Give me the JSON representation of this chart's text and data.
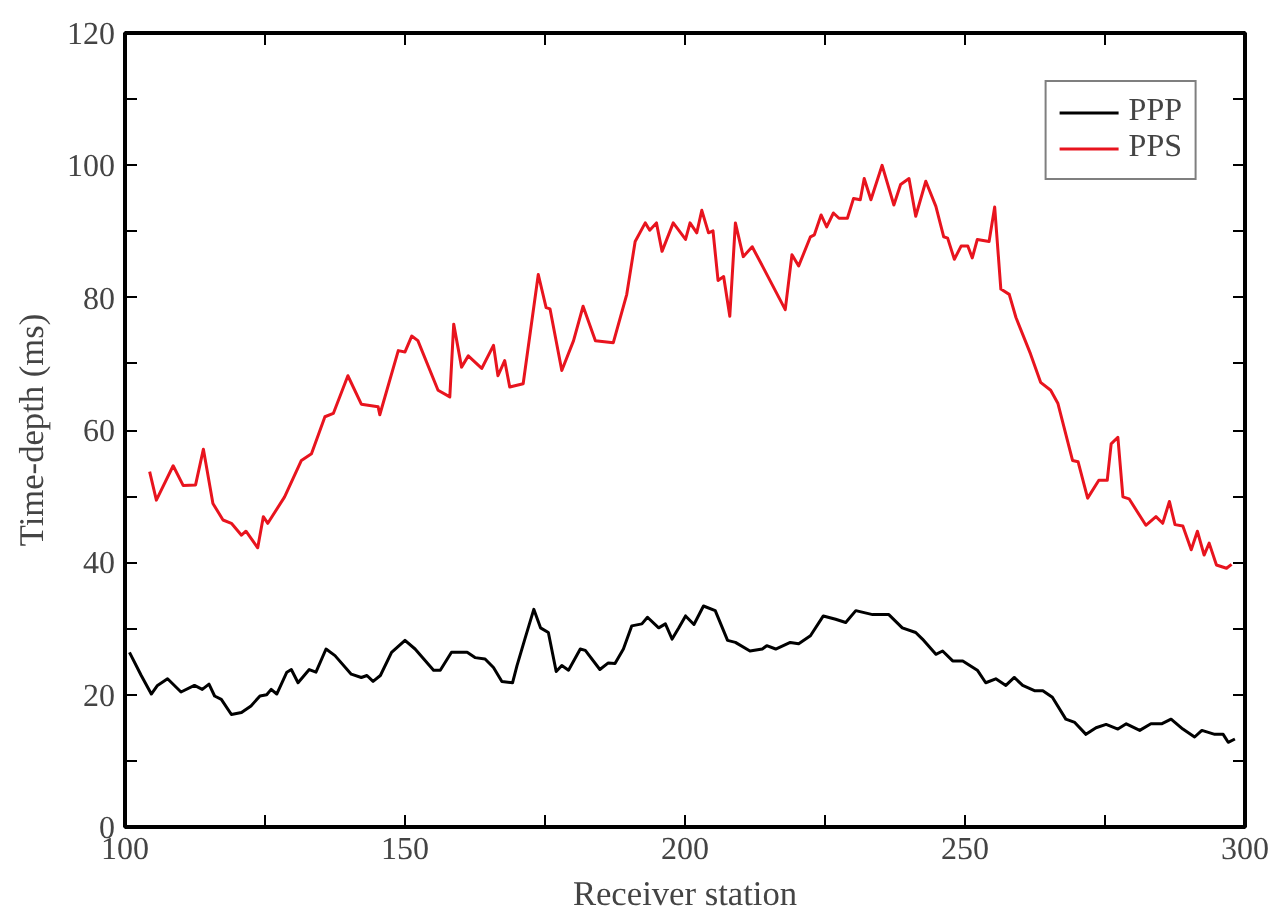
{
  "chart_data": {
    "type": "line",
    "xlabel": "Receiver station",
    "ylabel": "Time-depth (ms)",
    "xlim": [
      100,
      300
    ],
    "ylim": [
      0,
      120
    ],
    "xticks": [
      100,
      {
        "value": 125,
        "label": null
      },
      150,
      {
        "value": 175,
        "label": null
      },
      200,
      {
        "value": 225,
        "label": null
      },
      250,
      {
        "value": 275,
        "label": null
      },
      300
    ],
    "yticks": [
      0,
      {
        "value": 10,
        "label": null
      },
      20,
      {
        "value": 30,
        "label": null
      },
      40,
      {
        "value": 50,
        "label": null
      },
      60,
      {
        "value": 70,
        "label": null
      },
      80,
      {
        "value": 90,
        "label": null
      },
      100,
      {
        "value": 110,
        "label": null
      },
      120
    ],
    "grid": false,
    "legend": "top right",
    "marker": "none",
    "line_style": "solid",
    "series": [
      {
        "name": "PPP",
        "color": "#000000",
        "x": [
          100.8,
          102.9,
          104.7,
          105.8,
          107.6,
          110,
          112.4,
          113.8,
          115,
          116,
          117.2,
          119,
          120.8,
          122.5,
          124.1,
          125.3,
          126.1,
          127.1,
          128.9,
          129.7,
          130.9,
          132.9,
          134.1,
          135.9,
          137.5,
          140.4,
          142.2,
          143.2,
          144.3,
          145.6,
          147.6,
          150,
          151.8,
          155.1,
          156.3,
          158.3,
          161.1,
          162.5,
          164.3,
          165.8,
          167.3,
          169.2,
          170,
          171.4,
          173,
          174.2,
          175.6,
          177,
          178,
          179.2,
          181.3,
          182.2,
          184.8,
          186.3,
          187.5,
          189,
          190.5,
          192.3,
          193.3,
          195.3,
          196.5,
          197.7,
          198.9,
          200.1,
          201.6,
          203.3,
          205.4,
          207.6,
          209,
          211.6,
          213.8,
          214.6,
          216.2,
          218.8,
          220.3,
          222.4,
          224.7,
          226.9,
          228.7,
          230.5,
          233.5,
          236.4,
          238.8,
          241.2,
          242.4,
          244.8,
          246,
          247.8,
          249.6,
          252.2,
          253.7,
          255.5,
          257.3,
          258.8,
          260.3,
          262.4,
          263.9,
          265.6,
          268,
          269.6,
          271.6,
          273.4,
          275.2,
          277.3,
          278.8,
          281.2,
          283.2,
          285.1,
          286.8,
          288.9,
          291,
          292.3,
          294.6,
          296.1,
          297,
          298.2
        ],
        "values": [
          26.4,
          22.9,
          20.1,
          21.4,
          22.4,
          20.4,
          21.4,
          20.8,
          21.6,
          19.8,
          19.3,
          17,
          17.3,
          18.3,
          19.8,
          20,
          20.8,
          20.1,
          23.4,
          23.8,
          21.8,
          23.8,
          23.4,
          26.9,
          25.9,
          23.1,
          22.6,
          22.9,
          22,
          22.9,
          26.4,
          28.2,
          26.9,
          23.7,
          23.7,
          26.4,
          26.4,
          25.6,
          25.4,
          24.1,
          22,
          21.8,
          24.4,
          28.4,
          32.9,
          30.1,
          29.4,
          23.5,
          24.4,
          23.7,
          26.9,
          26.7,
          23.8,
          24.8,
          24.7,
          26.9,
          30.4,
          30.7,
          31.7,
          30.1,
          30.7,
          28.4,
          30.1,
          31.9,
          30.6,
          33.4,
          32.7,
          28.2,
          27.9,
          26.6,
          26.9,
          27.4,
          26.9,
          27.9,
          27.7,
          28.9,
          31.9,
          31.4,
          30.9,
          32.7,
          32.1,
          32.1,
          30.1,
          29.4,
          28.4,
          26.1,
          26.6,
          25.1,
          25.1,
          23.7,
          21.8,
          22.4,
          21.4,
          22.6,
          21.4,
          20.6,
          20.6,
          19.6,
          16.3,
          15.8,
          14,
          15,
          15.5,
          14.8,
          15.6,
          14.6,
          15.6,
          15.6,
          16.3,
          14.8,
          13.6,
          14.6,
          14,
          14,
          12.8,
          13.3
        ]
      },
      {
        "name": "PPS",
        "color": "#e8141e",
        "x": [
          104.4,
          105.6,
          108.6,
          110.4,
          112.6,
          114,
          115.7,
          117.5,
          119,
          120.8,
          121.6,
          123.7,
          124.7,
          125.5,
          128.5,
          131.5,
          133.3,
          135.7,
          137.2,
          139.8,
          142.2,
          145.2,
          145.5,
          148.8,
          150,
          151.2,
          152.3,
          155.9,
          158,
          158.7,
          160.1,
          161.3,
          163.7,
          165.8,
          166.6,
          167.8,
          168.7,
          171.1,
          173.8,
          175.2,
          175.9,
          178,
          180.1,
          181.8,
          184,
          187.2,
          189.6,
          191.1,
          192.9,
          193.7,
          194.9,
          195.9,
          197.9,
          200.1,
          200.9,
          202.1,
          203,
          204.2,
          205,
          205.9,
          206.9,
          208,
          209,
          210.4,
          212,
          214,
          217.9,
          219.1,
          220.3,
          222.4,
          223.1,
          224.3,
          225.3,
          226.5,
          227.5,
          229,
          230.1,
          231.3,
          232,
          233.2,
          235.2,
          237.3,
          238.5,
          240,
          241.2,
          243,
          244.8,
          246.2,
          246.9,
          248.1,
          249.3,
          250.5,
          251.3,
          252.2,
          254.3,
          255.3,
          256.4,
          257.9,
          259.1,
          261.7,
          263.5,
          265.3,
          266.6,
          269.2,
          270.2,
          271.9,
          273.9,
          275.4,
          276.1,
          277.3,
          278.2,
          279.3,
          282.3,
          284.1,
          285.3,
          286.5,
          287.5,
          288.9,
          290.4,
          291.5,
          292.7,
          293.6,
          294.9,
          296.7,
          297.6
        ],
        "values": [
          53.7,
          49.4,
          54.6,
          51.6,
          51.7,
          57.1,
          48.9,
          46.4,
          45.9,
          44.1,
          44.7,
          42.2,
          46.9,
          45.9,
          49.9,
          55.4,
          56.4,
          62,
          62.5,
          68.2,
          63.9,
          63.5,
          62.3,
          72,
          71.8,
          74.2,
          73.5,
          66,
          65,
          76,
          69.5,
          71.2,
          69.3,
          72.8,
          68.2,
          70.5,
          66.5,
          67,
          83.5,
          78.5,
          78.3,
          69,
          73.5,
          78.7,
          73.5,
          73.2,
          80.5,
          88.5,
          91.3,
          90.2,
          91.3,
          87,
          91.3,
          88.8,
          91.3,
          89.8,
          93.2,
          89.8,
          90.1,
          82.6,
          83.2,
          77.2,
          91.3,
          86.2,
          87.7,
          84.5,
          78.2,
          86.5,
          84.8,
          89.2,
          89.5,
          92.5,
          90.7,
          92.8,
          92,
          92,
          95,
          94.8,
          98,
          94.8,
          100,
          94,
          97.1,
          98,
          92.3,
          97.6,
          93.8,
          89.2,
          89,
          85.8,
          87.8,
          87.8,
          86,
          88.8,
          88.5,
          93.7,
          81.3,
          80.5,
          77,
          71.5,
          67.2,
          66,
          64,
          55.4,
          55.2,
          49.7,
          52.4,
          52.4,
          57.9,
          58.9,
          49.9,
          49.6,
          45.6,
          46.9,
          45.9,
          49.2,
          45.7,
          45.5,
          41.9,
          44.7,
          41.1,
          42.9,
          39.6,
          39.1,
          39.7
        ]
      }
    ]
  }
}
